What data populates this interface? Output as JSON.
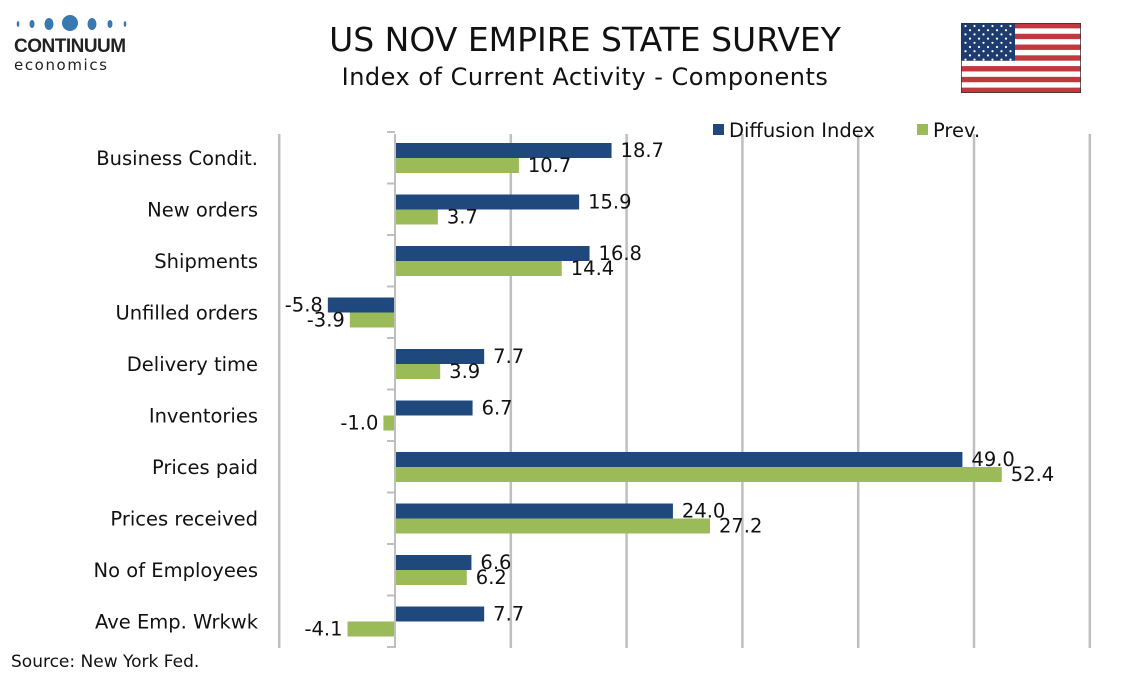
{
  "brand": {
    "name": "CONTINUUM",
    "sub": "economics",
    "logo_color": "#3a79b0"
  },
  "header": {
    "title": "US NOV EMPIRE STATE SURVEY",
    "subtitle": "Index of Current Activity - Components",
    "flag_icon": "us-flag-icon"
  },
  "footer": {
    "source": "Source: New York Fed."
  },
  "chart_data": {
    "type": "bar",
    "orientation": "horizontal",
    "title": "US NOV EMPIRE STATE SURVEY",
    "subtitle": "Index of Current Activity - Components",
    "categories": [
      "Business Condit.",
      "New orders",
      "Shipments",
      "Unfilled orders",
      "Delivery time",
      "Inventories",
      "Prices paid",
      "Prices received",
      "No of Employees",
      "Ave Emp. Wrkwk"
    ],
    "series": [
      {
        "name": "Diffusion Index",
        "color": "#1f497d",
        "values": [
          18.7,
          15.9,
          16.8,
          -5.8,
          7.7,
          6.7,
          49.0,
          24.0,
          6.6,
          7.7
        ]
      },
      {
        "name": "Prev.",
        "color": "#9bbb59",
        "values": [
          10.7,
          3.7,
          14.4,
          -3.9,
          3.9,
          -1.0,
          52.4,
          27.2,
          6.2,
          -4.1
        ]
      }
    ],
    "xlim": [
      -10,
      60
    ],
    "grid": true,
    "legend": "top-right",
    "data_labels": true,
    "xlabel": "",
    "ylabel": ""
  }
}
